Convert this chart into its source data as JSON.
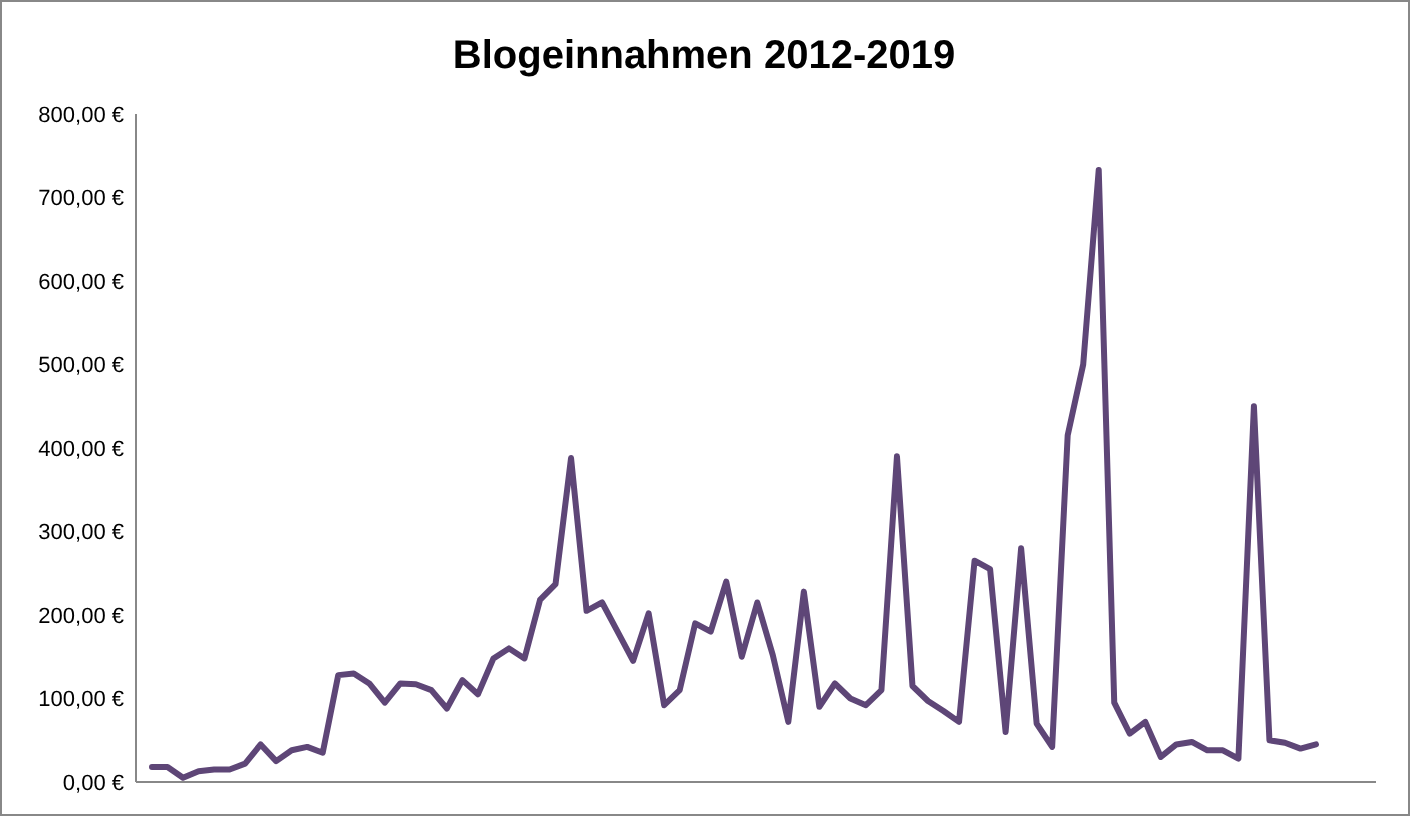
{
  "chart_data": {
    "type": "line",
    "title": "Blogeinnahmen 2012-2019",
    "categories": [
      null,
      null,
      null,
      null,
      null,
      null,
      null,
      null,
      null,
      null,
      null,
      null,
      null,
      null,
      null,
      null,
      null,
      null,
      null,
      null,
      null,
      null,
      null,
      null,
      null,
      null,
      null,
      null,
      null,
      null,
      null,
      null,
      null,
      null,
      null,
      null,
      null,
      null,
      null,
      null,
      null,
      null,
      null,
      null,
      null,
      null,
      null,
      null,
      null,
      null,
      null,
      null,
      null,
      null,
      null,
      null,
      null,
      null,
      null,
      null,
      null,
      null,
      null,
      null,
      null,
      null,
      null,
      null,
      null,
      null,
      null,
      null,
      null,
      null,
      null,
      null
    ],
    "series": [
      {
        "color": "#5e4677",
        "values": [
          18,
          18,
          5,
          13,
          15,
          15,
          22,
          45,
          25,
          38,
          42,
          35,
          128,
          130,
          118,
          95,
          118,
          117,
          110,
          88,
          122,
          105,
          148,
          160,
          148,
          218,
          237,
          388,
          205,
          215,
          180,
          145,
          202,
          92,
          110,
          190,
          180,
          240,
          150,
          215,
          152,
          72,
          228,
          90,
          118,
          100,
          92,
          110,
          390,
          115,
          97,
          85,
          72,
          265,
          255,
          60,
          280,
          70,
          42,
          415,
          500,
          733,
          95,
          58,
          72,
          30,
          45,
          48,
          38,
          38,
          28,
          450,
          50,
          47,
          40,
          45
        ]
      }
    ],
    "ylim": [
      0,
      800
    ],
    "yticks": [
      {
        "value": 0,
        "label": "0,00 €"
      },
      {
        "value": 100,
        "label": "100,00 €"
      },
      {
        "value": 200,
        "label": "200,00 €"
      },
      {
        "value": 300,
        "label": "300,00 €"
      },
      {
        "value": 400,
        "label": "400,00 €"
      },
      {
        "value": 500,
        "label": "500,00 €"
      },
      {
        "value": 600,
        "label": "600,00 €"
      },
      {
        "value": 700,
        "label": "700,00 €"
      },
      {
        "value": 800,
        "label": "800,00 €"
      }
    ],
    "grid": false,
    "marker": "none",
    "line_style": "solid"
  }
}
